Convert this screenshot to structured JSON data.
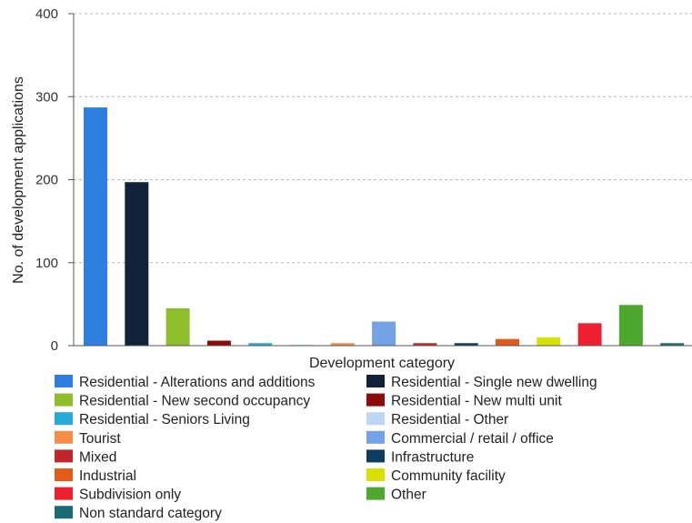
{
  "chart_data": {
    "type": "bar",
    "xlabel": "Development category",
    "ylabel": "No. of development applications",
    "ylim": [
      0,
      400
    ],
    "yticks": [
      0,
      100,
      200,
      300,
      400
    ],
    "grid": true,
    "legend_position": "bottom",
    "categories": [
      "Residential - Alterations and additions",
      "Residential - Single new dwelling",
      "Residential - New second occupancy",
      "Residential - New multi unit",
      "Residential - Seniors Living",
      "Residential - Other",
      "Tourist",
      "Commercial / retail / office",
      "Mixed",
      "Infrastructure",
      "Industrial",
      "Community facility",
      "Subdivision only",
      "Other",
      "Non standard category"
    ],
    "values": [
      287,
      197,
      45,
      6,
      3,
      1,
      3,
      29,
      3,
      3,
      8,
      10,
      27,
      49,
      3
    ],
    "colors": [
      "#2f7fe0",
      "#10233b",
      "#8fbe2c",
      "#8c0c0c",
      "#27aad8",
      "#bcd6f3",
      "#f28e48",
      "#73a3e6",
      "#c0272d",
      "#0d3d60",
      "#e35a1b",
      "#d7e000",
      "#ee1f2f",
      "#4ea72e",
      "#1e6b78"
    ]
  }
}
